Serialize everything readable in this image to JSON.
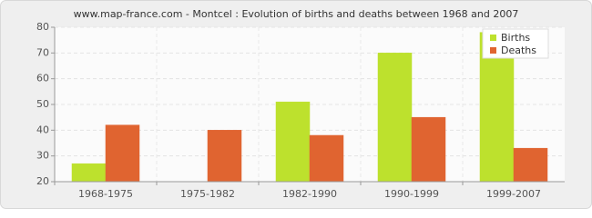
{
  "chart_data": {
    "type": "bar",
    "title": "www.map-france.com - Montcel : Evolution of births and deaths between 1968 and 2007",
    "categories": [
      "1968-1975",
      "1975-1982",
      "1982-1990",
      "1990-1999",
      "1999-2007"
    ],
    "series": [
      {
        "name": "Births",
        "color": "#bde12d",
        "values": [
          27,
          20,
          51,
          70,
          78
        ]
      },
      {
        "name": "Deaths",
        "color": "#e06430",
        "values": [
          42,
          40,
          38,
          45,
          33
        ]
      }
    ],
    "ylim": [
      20,
      80
    ],
    "yticks": [
      20,
      30,
      40,
      50,
      60,
      70,
      80
    ],
    "grid": true,
    "legend": "top-right"
  }
}
